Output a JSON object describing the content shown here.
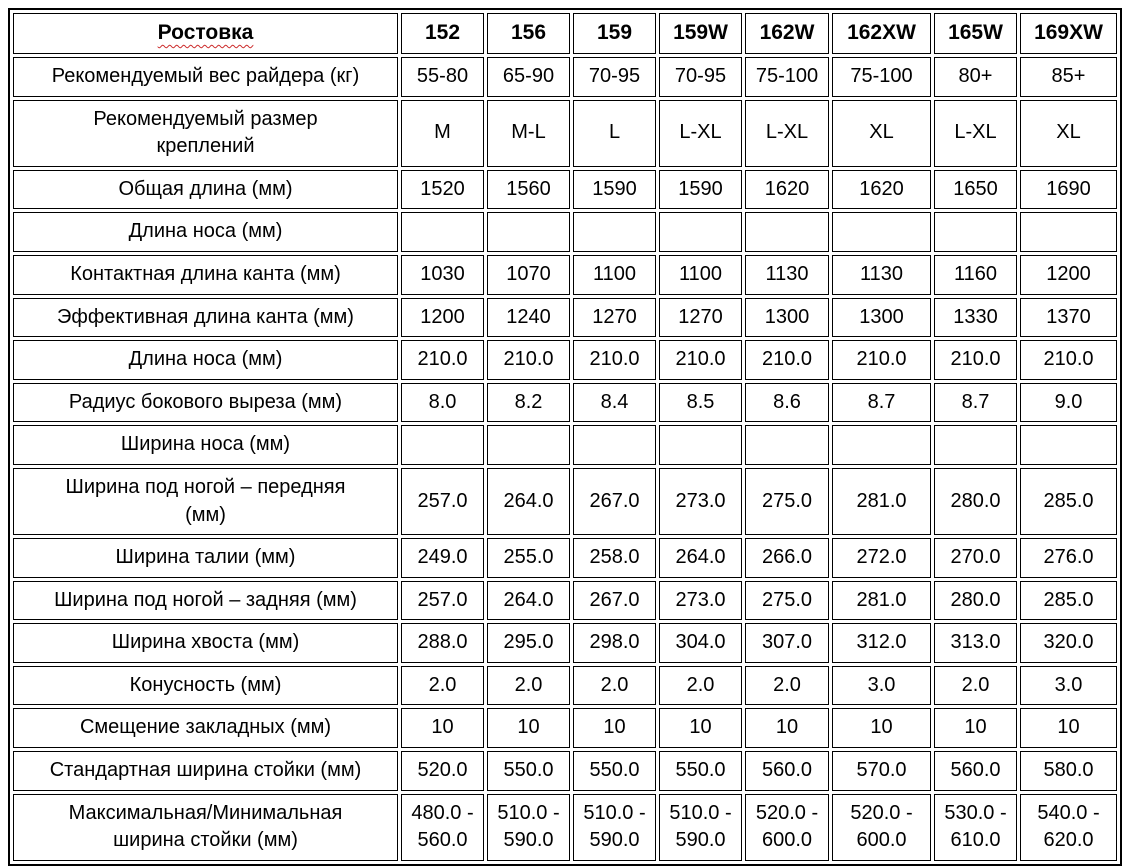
{
  "colors": {
    "text": "#000000",
    "border": "#000000",
    "background": "#ffffff",
    "misspell_underline": "#cc2a2a"
  },
  "table": {
    "header": {
      "label": "Ростовка",
      "sizes": [
        "152",
        "156",
        "159",
        "159W",
        "162W",
        "162XW",
        "165W",
        "169XW"
      ]
    },
    "rows": [
      {
        "label": "Рекомендуемый вес райдера (кг)",
        "values": [
          "55-80",
          "65-90",
          "70-95",
          "70-95",
          "75-100",
          "75-100",
          "80+",
          "85+"
        ]
      },
      {
        "label": "Рекомендуемый размер\nкреплений",
        "values": [
          "M",
          "M-L",
          "L",
          "L-XL",
          "L-XL",
          "XL",
          "L-XL",
          "XL"
        ]
      },
      {
        "label": "Общая длина (мм)",
        "values": [
          "1520",
          "1560",
          "1590",
          "1590",
          "1620",
          "1620",
          "1650",
          "1690"
        ]
      },
      {
        "label": "Длина носа (мм)",
        "values": [
          "",
          "",
          "",
          "",
          "",
          "",
          "",
          ""
        ]
      },
      {
        "label": "Контактная длина канта (мм)",
        "values": [
          "1030",
          "1070",
          "1100",
          "1100",
          "1130",
          "1130",
          "1160",
          "1200"
        ]
      },
      {
        "label": "Эффективная длина канта (мм)",
        "values": [
          "1200",
          "1240",
          "1270",
          "1270",
          "1300",
          "1300",
          "1330",
          "1370"
        ]
      },
      {
        "label": "Длина носа (мм)",
        "values": [
          "210.0",
          "210.0",
          "210.0",
          "210.0",
          "210.0",
          "210.0",
          "210.0",
          "210.0"
        ]
      },
      {
        "label": "Радиус бокового выреза (мм)",
        "values": [
          "8.0",
          "8.2",
          "8.4",
          "8.5",
          "8.6",
          "8.7",
          "8.7",
          "9.0"
        ]
      },
      {
        "label": "Ширина носа (мм)",
        "values": [
          "",
          "",
          "",
          "",
          "",
          "",
          "",
          ""
        ]
      },
      {
        "label": "Ширина под ногой – передняя\n(мм)",
        "values": [
          "257.0",
          "264.0",
          "267.0",
          "273.0",
          "275.0",
          "281.0",
          "280.0",
          "285.0"
        ]
      },
      {
        "label": "Ширина талии (мм)",
        "values": [
          "249.0",
          "255.0",
          "258.0",
          "264.0",
          "266.0",
          "272.0",
          "270.0",
          "276.0"
        ]
      },
      {
        "label": "Ширина под ногой – задняя (мм)",
        "values": [
          "257.0",
          "264.0",
          "267.0",
          "273.0",
          "275.0",
          "281.0",
          "280.0",
          "285.0"
        ]
      },
      {
        "label": "Ширина хвоста (мм)",
        "values": [
          "288.0",
          "295.0",
          "298.0",
          "304.0",
          "307.0",
          "312.0",
          "313.0",
          "320.0"
        ]
      },
      {
        "label": "Конусность (мм)",
        "values": [
          "2.0",
          "2.0",
          "2.0",
          "2.0",
          "2.0",
          "3.0",
          "2.0",
          "3.0"
        ]
      },
      {
        "label": "Смещение закладных (мм)",
        "values": [
          "10",
          "10",
          "10",
          "10",
          "10",
          "10",
          "10",
          "10"
        ]
      },
      {
        "label": "Стандартная ширина стойки (мм)",
        "values": [
          "520.0",
          "550.0",
          "550.0",
          "550.0",
          "560.0",
          "570.0",
          "560.0",
          "580.0"
        ]
      },
      {
        "label": "Максимальная/Минимальная\nширина стойки (мм)",
        "values": [
          "480.0 -\n560.0",
          "510.0 -\n590.0",
          "510.0 -\n590.0",
          "510.0 -\n590.0",
          "520.0 -\n600.0",
          "520.0 -\n600.0",
          "530.0 -\n610.0",
          "540.0 -\n620.0"
        ]
      }
    ]
  }
}
